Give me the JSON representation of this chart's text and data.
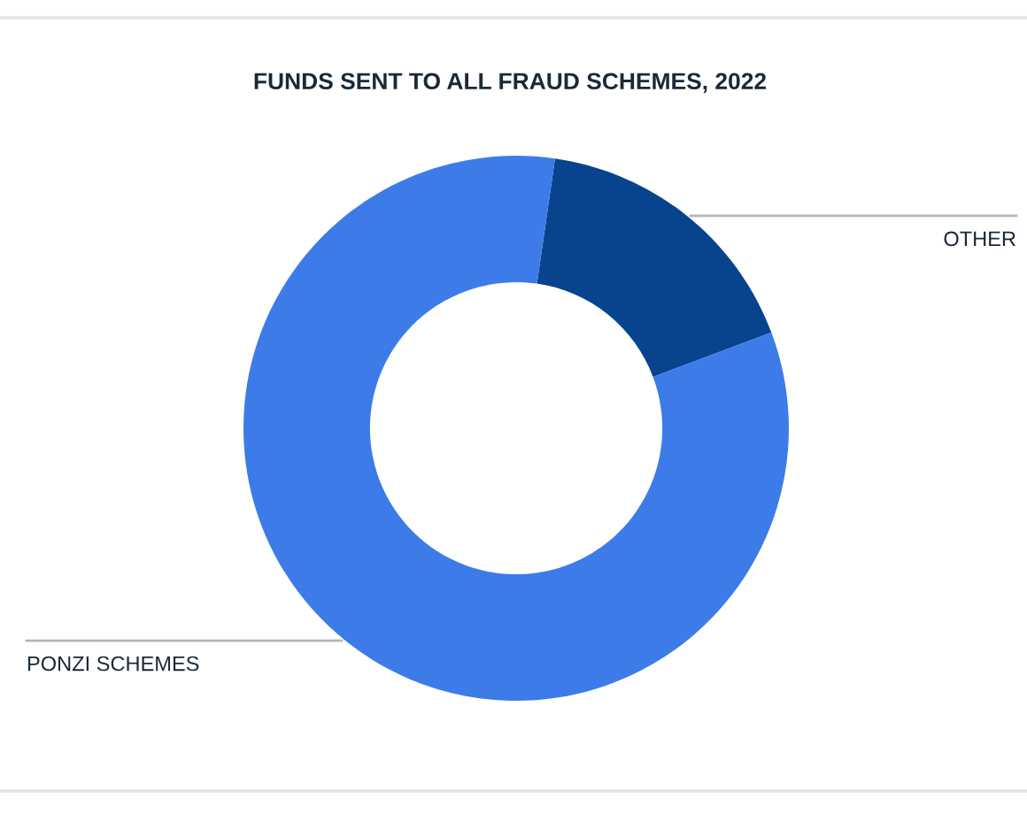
{
  "chart_data": {
    "type": "donut",
    "title": "FUNDS SENT TO ALL FRAUD SCHEMES, 2022",
    "categories": [
      "OTHER",
      "PONZI SCHEMES"
    ],
    "values": [
      17,
      83
    ],
    "colors": [
      "#08448e",
      "#3d7be9"
    ]
  }
}
